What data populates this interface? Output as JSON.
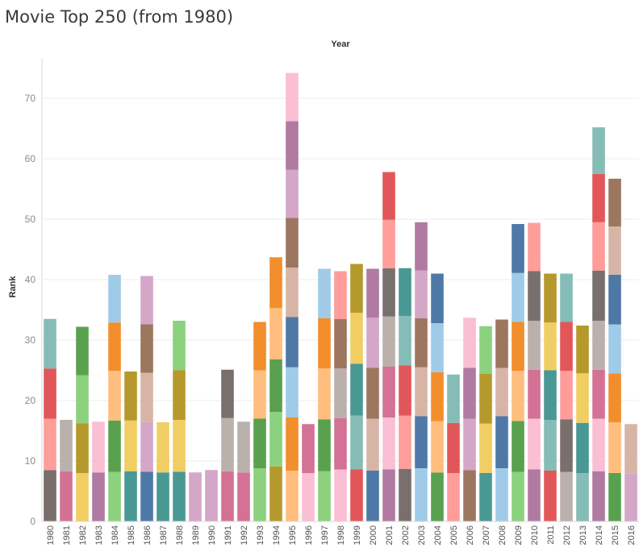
{
  "page_title": "Movie Top 250 (from 1980)",
  "chart_data": {
    "type": "bar",
    "stacked": true,
    "title": "Movie Top 250 (from 1980)",
    "column_header": "Year",
    "ylabel": "Rank",
    "ylim": [
      0,
      76
    ],
    "yticks": [
      0,
      10,
      20,
      30,
      40,
      50,
      60,
      70
    ],
    "grid": true,
    "legend": "none",
    "categories": [
      "1980",
      "1981",
      "1982",
      "1983",
      "1984",
      "1985",
      "1986",
      "1987",
      "1988",
      "1989",
      "1990",
      "1991",
      "1992",
      "1993",
      "1994",
      "1995",
      "1996",
      "1997",
      "1998",
      "1999",
      "2000",
      "2001",
      "2002",
      "2003",
      "2004",
      "2005",
      "2006",
      "2007",
      "2008",
      "2009",
      "2010",
      "2011",
      "2012",
      "2013",
      "2014",
      "2015",
      "2016"
    ],
    "stacks": [
      {
        "year": "1980",
        "segments": [
          {
            "value": 8.5,
            "color": "#7a6e6a"
          },
          {
            "value": 8.5,
            "color": "#ff9d9a"
          },
          {
            "value": 8.3,
            "color": "#e15759"
          },
          {
            "value": 8.2,
            "color": "#86bcb6"
          }
        ]
      },
      {
        "year": "1981",
        "segments": [
          {
            "value": 8.3,
            "color": "#d37295"
          },
          {
            "value": 8.5,
            "color": "#bab0ac"
          }
        ]
      },
      {
        "year": "1982",
        "segments": [
          {
            "value": 8.0,
            "color": "#f1ce63"
          },
          {
            "value": 8.2,
            "color": "#b6992d"
          },
          {
            "value": 8.0,
            "color": "#8cd17d"
          },
          {
            "value": 8.0,
            "color": "#59a14f"
          }
        ]
      },
      {
        "year": "1983",
        "segments": [
          {
            "value": 8.1,
            "color": "#b07aa1"
          },
          {
            "value": 8.4,
            "color": "#fabfd2"
          }
        ]
      },
      {
        "year": "1984",
        "segments": [
          {
            "value": 8.2,
            "color": "#8cd17d"
          },
          {
            "value": 8.5,
            "color": "#59a14f"
          },
          {
            "value": 8.2,
            "color": "#ffbe7d"
          },
          {
            "value": 8.0,
            "color": "#f28e2b"
          },
          {
            "value": 7.9,
            "color": "#a0cbe8"
          }
        ]
      },
      {
        "year": "1985",
        "segments": [
          {
            "value": 8.3,
            "color": "#499894"
          },
          {
            "value": 8.4,
            "color": "#f1ce63"
          },
          {
            "value": 8.1,
            "color": "#b6992d"
          }
        ]
      },
      {
        "year": "1986",
        "segments": [
          {
            "value": 8.2,
            "color": "#4e79a7"
          },
          {
            "value": 8.3,
            "color": "#d4a6c8"
          },
          {
            "value": 8.1,
            "color": "#d7b5a6"
          },
          {
            "value": 8.0,
            "color": "#9d7660"
          },
          {
            "value": 8.0,
            "color": "#d4a6c8"
          }
        ]
      },
      {
        "year": "1987",
        "segments": [
          {
            "value": 8.1,
            "color": "#499894"
          },
          {
            "value": 8.3,
            "color": "#f1ce63"
          }
        ]
      },
      {
        "year": "1988",
        "segments": [
          {
            "value": 8.2,
            "color": "#499894"
          },
          {
            "value": 8.6,
            "color": "#f1ce63"
          },
          {
            "value": 8.2,
            "color": "#b6992d"
          },
          {
            "value": 8.2,
            "color": "#8cd17d"
          }
        ]
      },
      {
        "year": "1989",
        "segments": [
          {
            "value": 8.1,
            "color": "#d4a6c8"
          }
        ]
      },
      {
        "year": "1990",
        "segments": [
          {
            "value": 8.5,
            "color": "#d4a6c8"
          }
        ]
      },
      {
        "year": "1991",
        "segments": [
          {
            "value": 8.3,
            "color": "#d37295"
          },
          {
            "value": 8.8,
            "color": "#bab0ac"
          },
          {
            "value": 8.0,
            "color": "#79706e"
          }
        ]
      },
      {
        "year": "1992",
        "segments": [
          {
            "value": 8.1,
            "color": "#d37295"
          },
          {
            "value": 8.4,
            "color": "#bab0ac"
          }
        ]
      },
      {
        "year": "1993",
        "segments": [
          {
            "value": 8.8,
            "color": "#8cd17d"
          },
          {
            "value": 8.2,
            "color": "#59a14f"
          },
          {
            "value": 8.0,
            "color": "#ffbe7d"
          },
          {
            "value": 8.0,
            "color": "#f28e2b"
          }
        ]
      },
      {
        "year": "1994",
        "segments": [
          {
            "value": 9.1,
            "color": "#b6992d"
          },
          {
            "value": 9.0,
            "color": "#8cd17d"
          },
          {
            "value": 8.7,
            "color": "#59a14f"
          },
          {
            "value": 8.5,
            "color": "#ffbe7d"
          },
          {
            "value": 8.4,
            "color": "#f28e2b"
          }
        ]
      },
      {
        "year": "1995",
        "segments": [
          {
            "value": 8.4,
            "color": "#ffbe7d"
          },
          {
            "value": 8.8,
            "color": "#f28e2b"
          },
          {
            "value": 8.3,
            "color": "#a0cbe8"
          },
          {
            "value": 8.3,
            "color": "#4e79a7"
          },
          {
            "value": 8.2,
            "color": "#d7b5a6"
          },
          {
            "value": 8.2,
            "color": "#9d7660"
          },
          {
            "value": 8.0,
            "color": "#d4a6c8"
          },
          {
            "value": 8.0,
            "color": "#b07aa1"
          },
          {
            "value": 8.0,
            "color": "#fabfd2"
          }
        ]
      },
      {
        "year": "1996",
        "segments": [
          {
            "value": 8.0,
            "color": "#fabfd2"
          },
          {
            "value": 8.1,
            "color": "#d37295"
          }
        ]
      },
      {
        "year": "1997",
        "segments": [
          {
            "value": 8.3,
            "color": "#8cd17d"
          },
          {
            "value": 8.6,
            "color": "#59a14f"
          },
          {
            "value": 8.4,
            "color": "#ffbe7d"
          },
          {
            "value": 8.3,
            "color": "#f28e2b"
          },
          {
            "value": 8.2,
            "color": "#a0cbe8"
          }
        ]
      },
      {
        "year": "1998",
        "segments": [
          {
            "value": 8.6,
            "color": "#fabfd2"
          },
          {
            "value": 8.5,
            "color": "#d37295"
          },
          {
            "value": 8.2,
            "color": "#bab0ac"
          },
          {
            "value": 8.2,
            "color": "#9d7660"
          },
          {
            "value": 7.9,
            "color": "#ff9d9a"
          }
        ]
      },
      {
        "year": "1999",
        "segments": [
          {
            "value": 8.6,
            "color": "#e15759"
          },
          {
            "value": 8.9,
            "color": "#86bcb6"
          },
          {
            "value": 8.6,
            "color": "#499894"
          },
          {
            "value": 8.4,
            "color": "#f1ce63"
          },
          {
            "value": 8.1,
            "color": "#b6992d"
          }
        ]
      },
      {
        "year": "2000",
        "segments": [
          {
            "value": 8.4,
            "color": "#4e79a7"
          },
          {
            "value": 8.6,
            "color": "#d7b5a6"
          },
          {
            "value": 8.4,
            "color": "#9d7660"
          },
          {
            "value": 8.3,
            "color": "#d4a6c8"
          },
          {
            "value": 8.1,
            "color": "#b07aa1"
          }
        ]
      },
      {
        "year": "2001",
        "segments": [
          {
            "value": 8.6,
            "color": "#b07aa1"
          },
          {
            "value": 8.6,
            "color": "#fabfd2"
          },
          {
            "value": 8.4,
            "color": "#d37295"
          },
          {
            "value": 8.3,
            "color": "#bab0ac"
          },
          {
            "value": 8.0,
            "color": "#79706e"
          },
          {
            "value": 8.0,
            "color": "#ff9d9a"
          },
          {
            "value": 7.9,
            "color": "#e15759"
          }
        ]
      },
      {
        "year": "2002",
        "segments": [
          {
            "value": 8.7,
            "color": "#79706e"
          },
          {
            "value": 8.8,
            "color": "#ff9d9a"
          },
          {
            "value": 8.3,
            "color": "#e15759"
          },
          {
            "value": 8.2,
            "color": "#86bcb6"
          },
          {
            "value": 7.9,
            "color": "#499894"
          }
        ]
      },
      {
        "year": "2003",
        "segments": [
          {
            "value": 8.8,
            "color": "#a0cbe8"
          },
          {
            "value": 8.6,
            "color": "#4e79a7"
          },
          {
            "value": 8.1,
            "color": "#d7b5a6"
          },
          {
            "value": 8.1,
            "color": "#9d7660"
          },
          {
            "value": 7.9,
            "color": "#d4a6c8"
          },
          {
            "value": 8.0,
            "color": "#b07aa1"
          }
        ]
      },
      {
        "year": "2004",
        "segments": [
          {
            "value": 8.1,
            "color": "#59a14f"
          },
          {
            "value": 8.5,
            "color": "#ffbe7d"
          },
          {
            "value": 8.1,
            "color": "#f28e2b"
          },
          {
            "value": 8.1,
            "color": "#a0cbe8"
          },
          {
            "value": 8.2,
            "color": "#4e79a7"
          }
        ]
      },
      {
        "year": "2005",
        "segments": [
          {
            "value": 8.0,
            "color": "#ff9d9a"
          },
          {
            "value": 8.3,
            "color": "#e15759"
          },
          {
            "value": 8.0,
            "color": "#86bcb6"
          }
        ]
      },
      {
        "year": "2006",
        "segments": [
          {
            "value": 8.5,
            "color": "#9d7660"
          },
          {
            "value": 8.5,
            "color": "#d4a6c8"
          },
          {
            "value": 8.4,
            "color": "#b07aa1"
          },
          {
            "value": 8.3,
            "color": "#fabfd2"
          }
        ]
      },
      {
        "year": "2007",
        "segments": [
          {
            "value": 8.0,
            "color": "#499894"
          },
          {
            "value": 8.2,
            "color": "#f1ce63"
          },
          {
            "value": 8.2,
            "color": "#b6992d"
          },
          {
            "value": 7.9,
            "color": "#8cd17d"
          }
        ]
      },
      {
        "year": "2008",
        "segments": [
          {
            "value": 8.8,
            "color": "#a0cbe8"
          },
          {
            "value": 8.6,
            "color": "#4e79a7"
          },
          {
            "value": 8.0,
            "color": "#d7b5a6"
          },
          {
            "value": 8.0,
            "color": "#9d7660"
          }
        ]
      },
      {
        "year": "2009",
        "segments": [
          {
            "value": 8.2,
            "color": "#8cd17d"
          },
          {
            "value": 8.4,
            "color": "#59a14f"
          },
          {
            "value": 8.3,
            "color": "#ffbe7d"
          },
          {
            "value": 8.1,
            "color": "#f28e2b"
          },
          {
            "value": 8.1,
            "color": "#a0cbe8"
          },
          {
            "value": 8.1,
            "color": "#4e79a7"
          }
        ]
      },
      {
        "year": "2010",
        "segments": [
          {
            "value": 8.6,
            "color": "#b07aa1"
          },
          {
            "value": 8.4,
            "color": "#fabfd2"
          },
          {
            "value": 8.1,
            "color": "#d37295"
          },
          {
            "value": 8.1,
            "color": "#bab0ac"
          },
          {
            "value": 8.2,
            "color": "#79706e"
          },
          {
            "value": 8.0,
            "color": "#ff9d9a"
          }
        ]
      },
      {
        "year": "2011",
        "segments": [
          {
            "value": 8.4,
            "color": "#e15759"
          },
          {
            "value": 8.4,
            "color": "#86bcb6"
          },
          {
            "value": 8.2,
            "color": "#499894"
          },
          {
            "value": 7.9,
            "color": "#f1ce63"
          },
          {
            "value": 8.1,
            "color": "#b6992d"
          }
        ]
      },
      {
        "year": "2012",
        "segments": [
          {
            "value": 8.2,
            "color": "#bab0ac"
          },
          {
            "value": 8.7,
            "color": "#79706e"
          },
          {
            "value": 8.0,
            "color": "#ff9d9a"
          },
          {
            "value": 8.1,
            "color": "#e15759"
          },
          {
            "value": 8.0,
            "color": "#86bcb6"
          }
        ]
      },
      {
        "year": "2013",
        "segments": [
          {
            "value": 8.0,
            "color": "#86bcb6"
          },
          {
            "value": 8.3,
            "color": "#499894"
          },
          {
            "value": 8.2,
            "color": "#f1ce63"
          },
          {
            "value": 7.9,
            "color": "#b6992d"
          }
        ]
      },
      {
        "year": "2014",
        "segments": [
          {
            "value": 8.3,
            "color": "#b07aa1"
          },
          {
            "value": 8.7,
            "color": "#fabfd2"
          },
          {
            "value": 8.1,
            "color": "#d37295"
          },
          {
            "value": 8.1,
            "color": "#bab0ac"
          },
          {
            "value": 8.3,
            "color": "#79706e"
          },
          {
            "value": 8.0,
            "color": "#ff9d9a"
          },
          {
            "value": 8.0,
            "color": "#e15759"
          },
          {
            "value": 7.7,
            "color": "#86bcb6"
          }
        ]
      },
      {
        "year": "2015",
        "segments": [
          {
            "value": 8.0,
            "color": "#59a14f"
          },
          {
            "value": 8.4,
            "color": "#ffbe7d"
          },
          {
            "value": 8.1,
            "color": "#f28e2b"
          },
          {
            "value": 8.1,
            "color": "#a0cbe8"
          },
          {
            "value": 8.2,
            "color": "#4e79a7"
          },
          {
            "value": 8.0,
            "color": "#d7b5a6"
          },
          {
            "value": 7.9,
            "color": "#9d7660"
          }
        ]
      },
      {
        "year": "2016",
        "segments": [
          {
            "value": 7.9,
            "color": "#d4a6c8"
          },
          {
            "value": 8.2,
            "color": "#d7b5a6"
          }
        ]
      }
    ]
  }
}
